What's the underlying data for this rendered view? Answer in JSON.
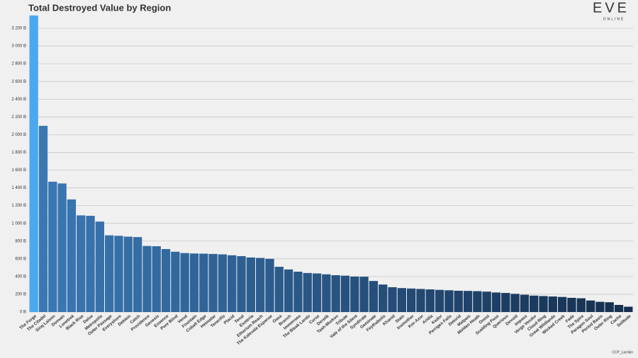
{
  "chart_data": {
    "type": "bar",
    "title": "Total Destroyed Value by Region",
    "logo": "EVE",
    "logo_subtitle": "ONLINE",
    "credit": "CCP_Larrikin",
    "categories": [
      "The Forge",
      "The Citadel",
      "Sinq Laison",
      "Domain",
      "Lonetrek",
      "Black Rise",
      "Delve",
      "Metropolis",
      "Outer Passage",
      "Everyshore",
      "Deklein",
      "Catch",
      "Providence",
      "Genesis",
      "Essence",
      "Pure Blind",
      "Venal",
      "Fountain",
      "Cobalt Edge",
      "Heimatar",
      "Tenerifis",
      "Placid",
      "Tenal",
      "Esoteria",
      "Etherium Reach",
      "The Kalevala Expanse",
      "Oasa",
      "Branch",
      "Immensea",
      "The Bleak Lands",
      "Curse",
      "Derelik",
      "Tash-Murkon",
      "Tribute",
      "Vale of the Silent",
      "Syndicate",
      "Geminate",
      "Feythabolis",
      "Khanid",
      "Stain",
      "Insmother",
      "Kor-Azor",
      "Aridia",
      "Kador",
      "Perrigen Falls",
      "Detorid",
      "Malpais",
      "Molden Heath",
      "Omist",
      "Scalding Pass",
      "Querious",
      "Devoid",
      "Impass",
      "Verge Vendor",
      "Cloud Ring",
      "Great Wildlands",
      "Wicked Creek",
      "Fade",
      "The Spire",
      "Paragon Soul",
      "Period Basis",
      "Outer Ring",
      "Cache",
      "Solitude"
    ],
    "values": [
      3345,
      2100,
      1470,
      1450,
      1270,
      1090,
      1085,
      1020,
      865,
      860,
      850,
      845,
      745,
      742,
      710,
      680,
      665,
      660,
      658,
      655,
      650,
      640,
      630,
      615,
      610,
      600,
      510,
      480,
      455,
      440,
      435,
      425,
      415,
      410,
      400,
      398,
      350,
      310,
      280,
      270,
      265,
      260,
      255,
      250,
      245,
      240,
      238,
      235,
      230,
      220,
      215,
      205,
      195,
      185,
      180,
      175,
      170,
      160,
      155,
      130,
      115,
      110,
      80,
      60
    ],
    "highlight_color": "#4aa8ef",
    "color_from": "#3a78b4",
    "color_to": "#152f4e",
    "ylim": [
      0,
      3200
    ],
    "yticks": [
      {
        "value": 0,
        "label": "0 B"
      },
      {
        "value": 200,
        "label": "200 B"
      },
      {
        "value": 400,
        "label": "400 B"
      },
      {
        "value": 600,
        "label": "600 B"
      },
      {
        "value": 800,
        "label": "800 B"
      },
      {
        "value": 1000,
        "label": "1 000 B"
      },
      {
        "value": 1200,
        "label": "1 200 B"
      },
      {
        "value": 1400,
        "label": "1 400 B"
      },
      {
        "value": 1600,
        "label": "1 600 B"
      },
      {
        "value": 1800,
        "label": "1 800 B"
      },
      {
        "value": 2000,
        "label": "2 000 B"
      },
      {
        "value": 2200,
        "label": "2 200 B"
      },
      {
        "value": 2400,
        "label": "2 400 B"
      },
      {
        "value": 2600,
        "label": "2 600 B"
      },
      {
        "value": 2800,
        "label": "2 800 B"
      },
      {
        "value": 3000,
        "label": "3 000 B"
      },
      {
        "value": 3200,
        "label": "3 200 B"
      }
    ],
    "grid": true
  }
}
